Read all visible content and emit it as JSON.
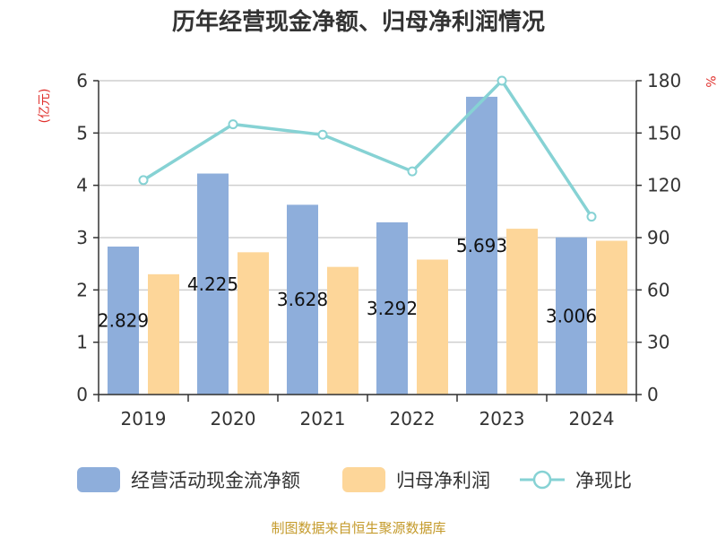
{
  "chart_data": {
    "type": "bar",
    "title": "历年经营现金净额、归母净利润情况",
    "categories": [
      "2019",
      "2020",
      "2021",
      "2022",
      "2023",
      "2024"
    ],
    "series": [
      {
        "name": "经营活动现金流净额",
        "type": "bar",
        "axis": "left",
        "values": [
          2.829,
          4.225,
          3.628,
          3.292,
          5.693,
          3.006
        ],
        "labels": [
          "2.829",
          "4.225",
          "3.628",
          "3.292",
          "5.693",
          "3.006"
        ]
      },
      {
        "name": "归母净利润",
        "type": "bar",
        "axis": "left",
        "values": [
          2.3,
          2.72,
          2.44,
          2.58,
          3.17,
          2.94
        ]
      },
      {
        "name": "净现比",
        "type": "line",
        "axis": "right",
        "values": [
          123,
          155,
          149,
          128,
          180,
          102
        ]
      }
    ],
    "left_axis": {
      "unit": "(亿元)",
      "range": [
        0,
        6
      ],
      "ticks": [
        "0",
        "1",
        "2",
        "3",
        "4",
        "5",
        "6"
      ]
    },
    "right_axis": {
      "unit": "%",
      "range": [
        0,
        180
      ],
      "ticks": [
        "0",
        "30",
        "60",
        "90",
        "120",
        "150",
        "180"
      ]
    },
    "grid": true,
    "legend_position": "bottom",
    "colors": {
      "bar1": "#8eaedb",
      "bar2": "#fdd699",
      "line": "#86d2d4",
      "grid": "#cfcfcf",
      "axis": "#333333"
    }
  },
  "source": "制图数据来自恒生聚源数据库"
}
